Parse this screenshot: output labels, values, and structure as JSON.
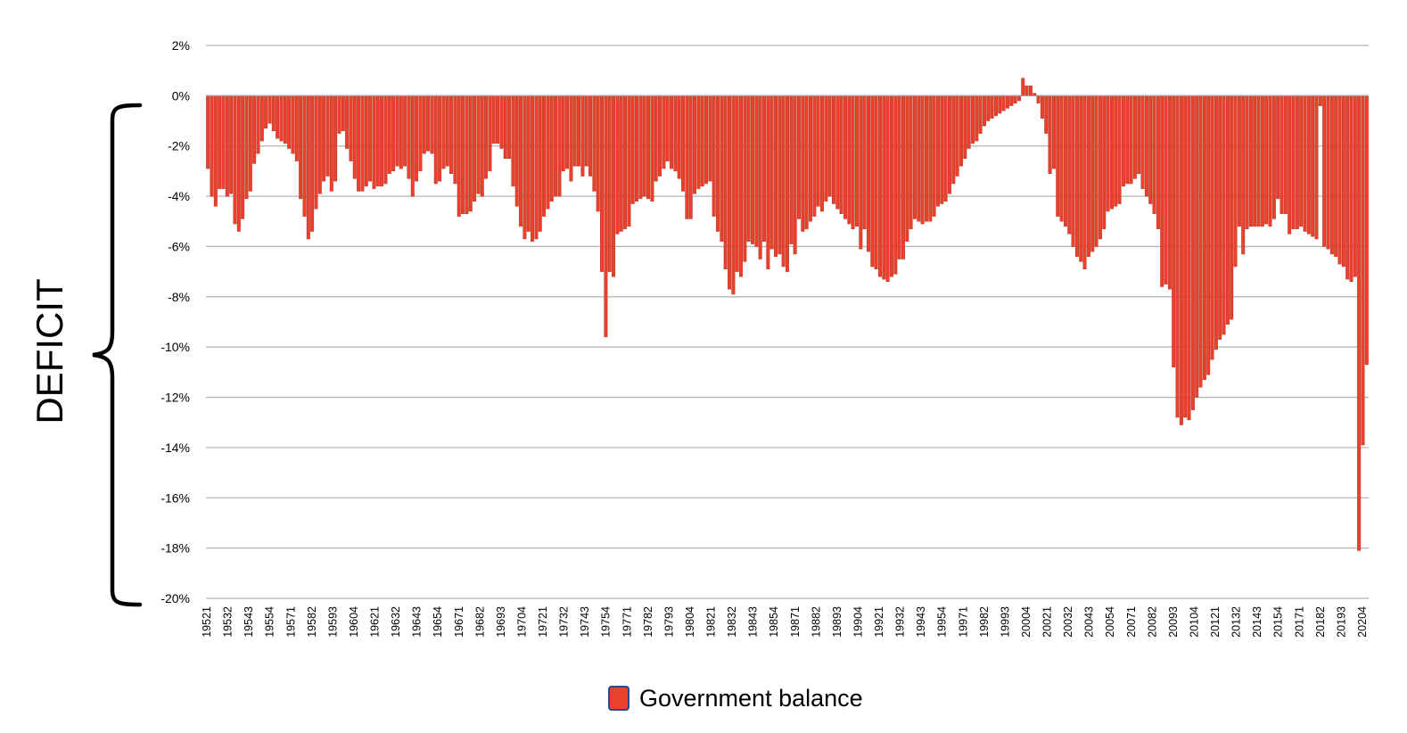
{
  "chart_data": {
    "type": "bar",
    "annotation": "DEFICIT",
    "legend": {
      "label": "Government balance",
      "position": "bottom-center"
    },
    "series": [
      {
        "name": "Government balance",
        "color": "#E8412C"
      }
    ],
    "ylim": [
      -20,
      2
    ],
    "yticks": [
      2,
      0,
      -2,
      -4,
      -6,
      -8,
      -10,
      -12,
      -14,
      -16,
      -18,
      -20
    ],
    "y_tick_suffix": "%",
    "grid": true,
    "x_tick_labels": [
      "19521",
      "19532",
      "19543",
      "19554",
      "19571",
      "19582",
      "19593",
      "19604",
      "19621",
      "19632",
      "19643",
      "19654",
      "19671",
      "19682",
      "19693",
      "19704",
      "19721",
      "19732",
      "19743",
      "19754",
      "19771",
      "19782",
      "19793",
      "19804",
      "19821",
      "19832",
      "19843",
      "19854",
      "19871",
      "19882",
      "19893",
      "19904",
      "19921",
      "19932",
      "19943",
      "19954",
      "19971",
      "19982",
      "19993",
      "20004",
      "20021",
      "20032",
      "20043",
      "20054",
      "20071",
      "20082",
      "20093",
      "20104",
      "20121",
      "20132",
      "20143",
      "20154",
      "20171",
      "20182",
      "20193",
      "20204"
    ],
    "values_quarterly_1952Q1_to_2020Q4": [
      -2.9,
      -4.0,
      -4.4,
      -3.7,
      -3.7,
      -4.0,
      -3.9,
      -5.1,
      -5.4,
      -4.9,
      -4.1,
      -3.8,
      -2.7,
      -2.3,
      -1.8,
      -1.3,
      -1.1,
      -1.4,
      -1.7,
      -1.8,
      -1.9,
      -2.1,
      -2.3,
      -2.6,
      -4.1,
      -4.8,
      -5.7,
      -5.4,
      -4.5,
      -3.9,
      -3.4,
      -3.2,
      -3.8,
      -3.4,
      -1.5,
      -1.4,
      -2.1,
      -2.6,
      -3.3,
      -3.8,
      -3.8,
      -3.6,
      -3.4,
      -3.7,
      -3.6,
      -3.6,
      -3.5,
      -3.1,
      -3.0,
      -2.8,
      -2.9,
      -2.8,
      -3.3,
      -4.0,
      -3.4,
      -3.0,
      -2.3,
      -2.2,
      -2.3,
      -3.5,
      -3.4,
      -2.9,
      -2.8,
      -3.1,
      -3.5,
      -4.8,
      -4.7,
      -4.7,
      -4.6,
      -4.2,
      -3.9,
      -4.0,
      -3.3,
      -3.0,
      -1.9,
      -1.9,
      -2.1,
      -2.5,
      -2.5,
      -3.6,
      -4.4,
      -5.2,
      -5.7,
      -5.4,
      -5.8,
      -5.7,
      -5.4,
      -4.8,
      -4.5,
      -4.2,
      -4.0,
      -4.0,
      -3.0,
      -2.9,
      -3.4,
      -2.8,
      -2.8,
      -3.2,
      -2.8,
      -3.2,
      -3.8,
      -4.6,
      -7.0,
      -9.6,
      -7.0,
      -7.2,
      -5.5,
      -5.4,
      -5.3,
      -5.2,
      -4.3,
      -4.2,
      -4.1,
      -4.0,
      -4.1,
      -4.2,
      -3.4,
      -3.2,
      -2.9,
      -2.6,
      -2.9,
      -3.0,
      -3.3,
      -3.8,
      -4.9,
      -4.9,
      -3.9,
      -3.7,
      -3.6,
      -3.5,
      -3.4,
      -4.8,
      -5.4,
      -5.8,
      -6.9,
      -7.7,
      -7.9,
      -7.0,
      -7.2,
      -6.6,
      -5.8,
      -5.9,
      -6.0,
      -6.5,
      -5.8,
      -6.9,
      -6.1,
      -6.4,
      -6.3,
      -6.8,
      -7.0,
      -5.9,
      -6.3,
      -4.9,
      -5.4,
      -5.3,
      -5.0,
      -4.8,
      -4.4,
      -4.6,
      -4.2,
      -4.0,
      -4.3,
      -4.5,
      -4.7,
      -4.9,
      -5.1,
      -5.3,
      -5.2,
      -6.1,
      -5.3,
      -6.2,
      -6.8,
      -6.9,
      -7.2,
      -7.3,
      -7.4,
      -7.2,
      -7.1,
      -6.5,
      -6.5,
      -5.8,
      -5.3,
      -4.9,
      -5.0,
      -5.1,
      -5.0,
      -5.0,
      -4.8,
      -4.4,
      -4.3,
      -4.2,
      -3.9,
      -3.5,
      -3.2,
      -2.8,
      -2.5,
      -2.1,
      -1.9,
      -1.8,
      -1.5,
      -1.2,
      -1.0,
      -0.9,
      -0.8,
      -0.7,
      -0.6,
      -0.5,
      -0.4,
      -0.3,
      -0.2,
      0.7,
      0.4,
      0.4,
      0.1,
      -0.3,
      -0.9,
      -1.5,
      -3.1,
      -2.9,
      -4.8,
      -5.0,
      -5.2,
      -5.5,
      -6.0,
      -6.4,
      -6.6,
      -6.9,
      -6.4,
      -6.2,
      -6.0,
      -5.7,
      -5.3,
      -4.6,
      -4.5,
      -4.4,
      -4.3,
      -3.6,
      -3.5,
      -3.5,
      -3.3,
      -3.1,
      -3.7,
      -4.0,
      -4.3,
      -4.7,
      -5.3,
      -7.6,
      -7.5,
      -7.7,
      -10.8,
      -12.8,
      -13.1,
      -12.8,
      -12.9,
      -12.5,
      -12.0,
      -11.6,
      -11.3,
      -11.1,
      -10.5,
      -10.1,
      -9.7,
      -9.5,
      -9.1,
      -8.9,
      -6.8,
      -5.2,
      -6.3,
      -5.3,
      -5.2,
      -5.2,
      -5.2,
      -5.2,
      -5.1,
      -5.2,
      -4.9,
      -4.1,
      -4.7,
      -4.7,
      -5.5,
      -5.3,
      -5.3,
      -5.2,
      -5.4,
      -5.5,
      -5.6,
      -5.7,
      -0.4,
      -6.0,
      -6.1,
      -6.3,
      -6.4,
      -6.7,
      -6.8,
      -7.3,
      -7.4,
      -7.2,
      -18.1,
      -13.9,
      -10.7
    ]
  }
}
